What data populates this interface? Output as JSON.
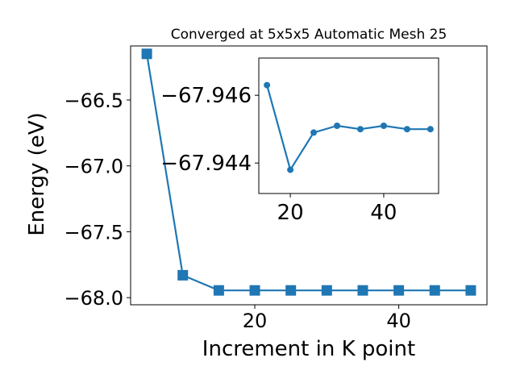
{
  "chart_data": [
    {
      "type": "line",
      "title": "Converged at 5x5x5 Automatic Mesh 25",
      "xlabel": "Increment in K point",
      "ylabel": "Energy (eV)",
      "marker": "square",
      "color": "#1f77b4",
      "x": [
        5,
        10,
        15,
        20,
        25,
        30,
        35,
        40,
        45,
        50
      ],
      "y": [
        -66.15,
        -67.83,
        -67.945,
        -67.945,
        -67.945,
        -67.945,
        -67.945,
        -67.945,
        -67.945,
        -67.945
      ],
      "xlim": [
        2.75,
        52.25
      ],
      "ylim": [
        -68.054,
        -66.09
      ],
      "xticks": [
        20,
        40
      ],
      "xtick_labels": [
        "20",
        "40"
      ],
      "yticks": [
        -66.5,
        -67.0,
        -67.5,
        -68.0
      ],
      "ytick_labels": [
        "−66.5",
        "−67.0",
        "−67.5",
        "−68.0"
      ],
      "grid": false,
      "legend": "none"
    },
    {
      "type": "line",
      "role": "inset",
      "marker": "circle",
      "color": "#1f77b4",
      "x": [
        15,
        20,
        25,
        30,
        35,
        40,
        45,
        50
      ],
      "y": [
        -67.9463,
        -67.9438,
        -67.9449,
        -67.9451,
        -67.945,
        -67.9451,
        -67.945,
        -67.945
      ],
      "xlim": [
        13.25,
        51.75
      ],
      "ylim": [
        -67.9431,
        -67.9471
      ],
      "xticks": [
        20,
        40
      ],
      "xtick_labels": [
        "20",
        "40"
      ],
      "yticks": [
        -67.946,
        -67.944
      ],
      "ytick_labels": [
        "−67.946",
        "−67.944"
      ],
      "grid": false,
      "legend": "none"
    }
  ]
}
